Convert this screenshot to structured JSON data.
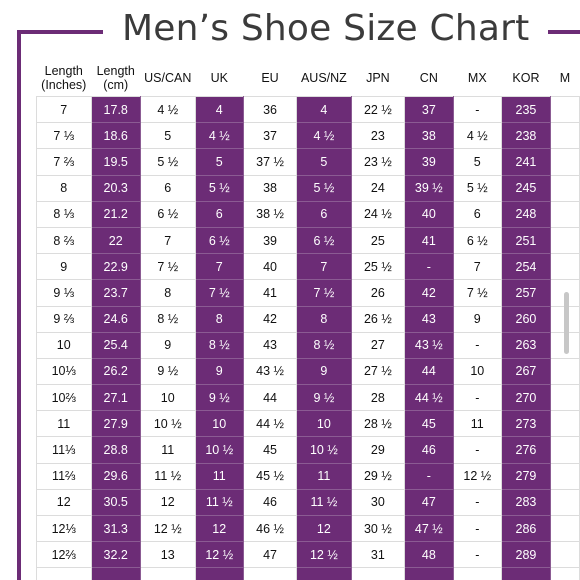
{
  "title": "Men’s Shoe Size Chart",
  "colors": {
    "accent": "#6c2c76"
  },
  "table": {
    "headers": [
      [
        "Length",
        "(Inches)"
      ],
      [
        "Length",
        "(cm)"
      ],
      [
        "US/CAN",
        ""
      ],
      [
        "UK",
        ""
      ],
      [
        "EU",
        ""
      ],
      [
        "AUS/NZ",
        ""
      ],
      [
        "JPN",
        ""
      ],
      [
        "CN",
        ""
      ],
      [
        "MX",
        ""
      ],
      [
        "KOR",
        ""
      ],
      [
        "M",
        ""
      ]
    ],
    "shaded_columns": [
      1,
      3,
      5,
      7,
      9
    ],
    "rows": [
      [
        "7",
        "17.8",
        "4 ½",
        "4",
        "36",
        "4",
        "22 ½",
        "37",
        "-",
        "235",
        ""
      ],
      [
        "7 ⅓",
        "18.6",
        "5",
        "4 ½",
        "37",
        "4 ½",
        "23",
        "38",
        "4 ½",
        "238",
        ""
      ],
      [
        "7 ⅔",
        "19.5",
        "5 ½",
        "5",
        "37 ½",
        "5",
        "23 ½",
        "39",
        "5",
        "241",
        ""
      ],
      [
        "8",
        "20.3",
        "6",
        "5 ½",
        "38",
        "5 ½",
        "24",
        "39 ½",
        "5 ½",
        "245",
        ""
      ],
      [
        "8 ⅓",
        "21.2",
        "6 ½",
        "6",
        "38 ½",
        "6",
        "24 ½",
        "40",
        "6",
        "248",
        ""
      ],
      [
        "8 ⅔",
        "22",
        "7",
        "6 ½",
        "39",
        "6 ½",
        "25",
        "41",
        "6 ½",
        "251",
        ""
      ],
      [
        "9",
        "22.9",
        "7 ½",
        "7",
        "40",
        "7",
        "25 ½",
        "-",
        "7",
        "254",
        ""
      ],
      [
        "9 ⅓",
        "23.7",
        "8",
        "7 ½",
        "41",
        "7 ½",
        "26",
        "42",
        "7 ½",
        "257",
        ""
      ],
      [
        "9 ⅔",
        "24.6",
        "8 ½",
        "8",
        "42",
        "8",
        "26 ½",
        "43",
        "9",
        "260",
        ""
      ],
      [
        "10",
        "25.4",
        "9",
        "8 ½",
        "43",
        "8 ½",
        "27",
        "43 ½",
        "-",
        "263",
        ""
      ],
      [
        "10⅓",
        "26.2",
        "9 ½",
        "9",
        "43 ½",
        "9",
        "27 ½",
        "44",
        "10",
        "267",
        ""
      ],
      [
        "10⅔",
        "27.1",
        "10",
        "9 ½",
        "44",
        "9 ½",
        "28",
        "44 ½",
        "-",
        "270",
        ""
      ],
      [
        "11",
        "27.9",
        "10 ½",
        "10",
        "44 ½",
        "10",
        "28 ½",
        "45",
        "11",
        "273",
        ""
      ],
      [
        "11⅓",
        "28.8",
        "11",
        "10 ½",
        "45",
        "10 ½",
        "29",
        "46",
        "-",
        "276",
        ""
      ],
      [
        "11⅔",
        "29.6",
        "11 ½",
        "11",
        "45 ½",
        "11",
        "29 ½",
        "-",
        "12 ½",
        "279",
        ""
      ],
      [
        "12",
        "30.5",
        "12",
        "11 ½",
        "46",
        "11 ½",
        "30",
        "47",
        "-",
        "283",
        ""
      ],
      [
        "12⅓",
        "31.3",
        "12 ½",
        "12",
        "46 ½",
        "12",
        "30 ½",
        "47 ½",
        "-",
        "286",
        ""
      ],
      [
        "12⅔",
        "32.2",
        "13",
        "12 ½",
        "47",
        "12 ½",
        "31",
        "48",
        "-",
        "289",
        ""
      ],
      [
        "",
        "",
        "",
        "",
        "",
        "",
        "",
        "",
        "",
        "",
        ""
      ]
    ]
  }
}
